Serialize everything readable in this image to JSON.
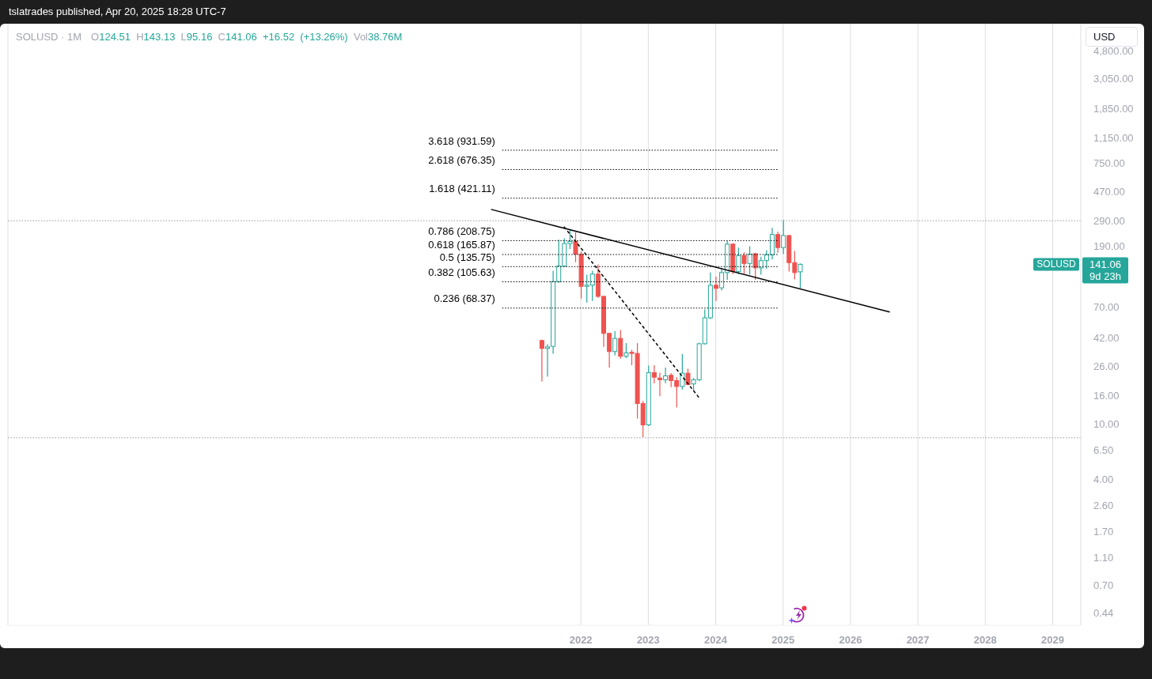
{
  "chart_data": {
    "type": "candlestick",
    "title": "SOLUSD · 1M",
    "subtitle": "O124.51 H143.13 L95.16 C141.06 +16.52 (+13.26%) Vol38.76M",
    "x": [
      "2021-06",
      "2021-07",
      "2021-08",
      "2021-09",
      "2021-10",
      "2021-11",
      "2021-12",
      "2022-01",
      "2022-02",
      "2022-03",
      "2022-04",
      "2022-05",
      "2022-06",
      "2022-07",
      "2022-08",
      "2022-09",
      "2022-10",
      "2022-11",
      "2022-12",
      "2023-01",
      "2023-02",
      "2023-03",
      "2023-04",
      "2023-05",
      "2023-06",
      "2023-07",
      "2023-08",
      "2023-09",
      "2023-10",
      "2023-11",
      "2023-12",
      "2024-01",
      "2024-02",
      "2024-03",
      "2024-04",
      "2024-05",
      "2024-06",
      "2024-07",
      "2024-08",
      "2024-09",
      "2024-10",
      "2024-11",
      "2024-12",
      "2025-01",
      "2025-02",
      "2025-03",
      "2025-04"
    ],
    "ohlc": [
      [
        40,
        40.5,
        20.3,
        35.1
      ],
      [
        35.1,
        37.6,
        22,
        36
      ],
      [
        36.3,
        127,
        32.1,
        106
      ],
      [
        106,
        212,
        104,
        137
      ],
      [
        137,
        217,
        135,
        199
      ],
      [
        199,
        252,
        182,
        206
      ],
      [
        206,
        240,
        146,
        167
      ],
      [
        167,
        174,
        80,
        98
      ],
      [
        98,
        119,
        75,
        100
      ],
      [
        100,
        127,
        77,
        120
      ],
      [
        120,
        141,
        81,
        83
      ],
      [
        83,
        84,
        36,
        45
      ],
      [
        45,
        45.5,
        25.6,
        33.3
      ],
      [
        33.3,
        46.8,
        31.2,
        41.4
      ],
      [
        41.4,
        47.6,
        29.6,
        30.8
      ],
      [
        30.8,
        38.4,
        29.9,
        32.6
      ],
      [
        32.9,
        34.3,
        26.6,
        32.3
      ],
      [
        32.3,
        38.3,
        11,
        14.1
      ],
      [
        14.1,
        14.7,
        8.1,
        9.9
      ],
      [
        9.9,
        26.4,
        9.7,
        23.5
      ],
      [
        23.5,
        26.6,
        19.7,
        21.8
      ],
      [
        21.5,
        23.5,
        15.9,
        20.9
      ],
      [
        20.9,
        25.6,
        19.7,
        22.3
      ],
      [
        22.5,
        23.3,
        18.5,
        20.6
      ],
      [
        20.6,
        21.8,
        13.2,
        18.7
      ],
      [
        18.7,
        31.9,
        17.8,
        23.3
      ],
      [
        23.3,
        25.1,
        19.1,
        19.3
      ],
      [
        19.5,
        21.5,
        17.3,
        20.9
      ],
      [
        20.9,
        38.5,
        20.5,
        37.9
      ],
      [
        37.9,
        66.8,
        37.5,
        58.2
      ],
      [
        58.2,
        123,
        57,
        99.8
      ],
      [
        99.8,
        115,
        77,
        94.7
      ],
      [
        95.6,
        131,
        91.4,
        123
      ],
      [
        123,
        207,
        109,
        197
      ],
      [
        197,
        200,
        120,
        125
      ],
      [
        125,
        186,
        120,
        163
      ],
      [
        163,
        172,
        121,
        143
      ],
      [
        143,
        190,
        119,
        167
      ],
      [
        168,
        171,
        109,
        133
      ],
      [
        133,
        160,
        119,
        150
      ],
      [
        150,
        178,
        131,
        165
      ],
      [
        165,
        258,
        153,
        231
      ],
      [
        231,
        242,
        171,
        186
      ],
      [
        186,
        294,
        167,
        227
      ],
      [
        227,
        229,
        125,
        145
      ],
      [
        145,
        176,
        110,
        123
      ],
      [
        124.51,
        143.13,
        95.16,
        141.06
      ]
    ],
    "colors": [
      "#ef5350",
      "#26a69a",
      "#26a69a",
      "#26a69a",
      "#26a69a",
      "#26a69a",
      "#ef5350",
      "#ef5350",
      "#26a69a",
      "#26a69a",
      "#ef5350",
      "#ef5350",
      "#ef5350",
      "#26a69a",
      "#ef5350",
      "#26a69a",
      "#ef5350",
      "#ef5350",
      "#ef5350",
      "#26a69a",
      "#ef5350",
      "#ef5350",
      "#26a69a",
      "#ef5350",
      "#ef5350",
      "#26a69a",
      "#ef5350",
      "#26a69a",
      "#26a69a",
      "#26a69a",
      "#26a69a",
      "#ef5350",
      "#26a69a",
      "#26a69a",
      "#ef5350",
      "#26a69a",
      "#ef5350",
      "#26a69a",
      "#ef5350",
      "#26a69a",
      "#26a69a",
      "#26a69a",
      "#ef5350",
      "#26a69a",
      "#ef5350",
      "#ef5350",
      "#26a69a"
    ],
    "series": [
      {
        "type": "line",
        "name": "3.618 (931.59)",
        "color": "#000000",
        "line_style": "dotted",
        "x": [
          "2020-11",
          "2024-12"
        ],
        "values": [
          931.59,
          931.59
        ]
      },
      {
        "type": "line",
        "name": "2.618 (676.35)",
        "color": "#000000",
        "line_style": "dotted",
        "x": [
          "2020-11",
          "2024-12"
        ],
        "values": [
          676.35,
          676.35
        ]
      },
      {
        "type": "line",
        "name": "1.618 (421.11)",
        "color": "#000000",
        "line_style": "dotted",
        "x": [
          "2020-11",
          "2024-12"
        ],
        "values": [
          421.11,
          421.11
        ]
      },
      {
        "type": "line",
        "name": "0.786 (208.75)",
        "color": "#000000",
        "line_style": "dotted",
        "x": [
          "2020-11",
          "2024-12"
        ],
        "values": [
          208.75,
          208.75
        ]
      },
      {
        "type": "line",
        "name": "0.618 (165.87)",
        "color": "#000000",
        "line_style": "dotted",
        "x": [
          "2020-11",
          "2024-12"
        ],
        "values": [
          165.87,
          165.87
        ]
      },
      {
        "type": "line",
        "name": "0.5 (135.75)",
        "color": "#000000",
        "line_style": "dotted",
        "x": [
          "2020-11",
          "2024-12"
        ],
        "values": [
          135.75,
          135.75
        ]
      },
      {
        "type": "line",
        "name": "0.382 (105.63)",
        "color": "#000000",
        "line_style": "dotted",
        "x": [
          "2020-11",
          "2024-12"
        ],
        "values": [
          105.63,
          105.63
        ]
      },
      {
        "type": "line",
        "name": "0.236 (68.37)",
        "color": "#000000",
        "line_style": "dotted",
        "x": [
          "2020-11",
          "2024-12"
        ],
        "values": [
          68.37,
          68.37
        ]
      },
      {
        "type": "line",
        "color": "#000000",
        "line_style": "solid",
        "x": [
          "2020-09",
          "2026-08"
        ],
        "values": [
          350,
          64
        ]
      },
      {
        "type": "line",
        "color": "#000000",
        "line_style": "dashed",
        "x": [
          "2021-10",
          "2023-10"
        ],
        "values": [
          263,
          15.6
        ]
      }
    ],
    "xlim": [
      "2013-07",
      "2029-06"
    ],
    "xticks": [
      "2022",
      "2023",
      "2024",
      "2025",
      "2026",
      "2027",
      "2028",
      "2029"
    ],
    "ylim": [
      0.36,
      7550
    ],
    "yticks": [
      0.44,
      {
        "value": 0.7,
        "label": "0.70"
      },
      {
        "value": 1.1,
        "label": "1.10"
      },
      {
        "value": 1.7,
        "label": "1.70"
      },
      {
        "value": 2.6,
        "label": "2.60"
      },
      {
        "value": 4,
        "label": "4.00"
      },
      {
        "value": 6.5,
        "label": "6.50"
      },
      {
        "value": 10,
        "label": "10.00"
      },
      {
        "value": 16,
        "label": "16.00"
      },
      {
        "value": 26,
        "label": "26.00"
      },
      {
        "value": 42,
        "label": "42.00"
      },
      {
        "value": 70,
        "label": "70.00"
      },
      {
        "value": 190,
        "label": "190.00"
      },
      {
        "value": 290,
        "label": "290.00"
      },
      {
        "value": 470,
        "label": "470.00"
      },
      {
        "value": 750,
        "label": "750.00"
      },
      {
        "value": 1150,
        "label": "1,150.00"
      },
      {
        "value": 1850,
        "label": "1,850.00"
      },
      {
        "value": 3050,
        "label": "3,050.00"
      },
      {
        "value": 4800,
        "label": "4,800.00"
      }
    ],
    "log": true,
    "grid": "x",
    "ref_lines": [
      {
        "axis": "y",
        "value": 290,
        "color": "#9598a1",
        "line_style": "dotted"
      },
      {
        "axis": "y",
        "value": 8,
        "color": "#9598a1",
        "line_style": "dotted"
      }
    ],
    "annotations": [
      "tslatrades published, Apr 20, 2025 18:28 UTC-7",
      "USD",
      "SOLUSD",
      "141.06",
      "9d 23h"
    ]
  }
}
